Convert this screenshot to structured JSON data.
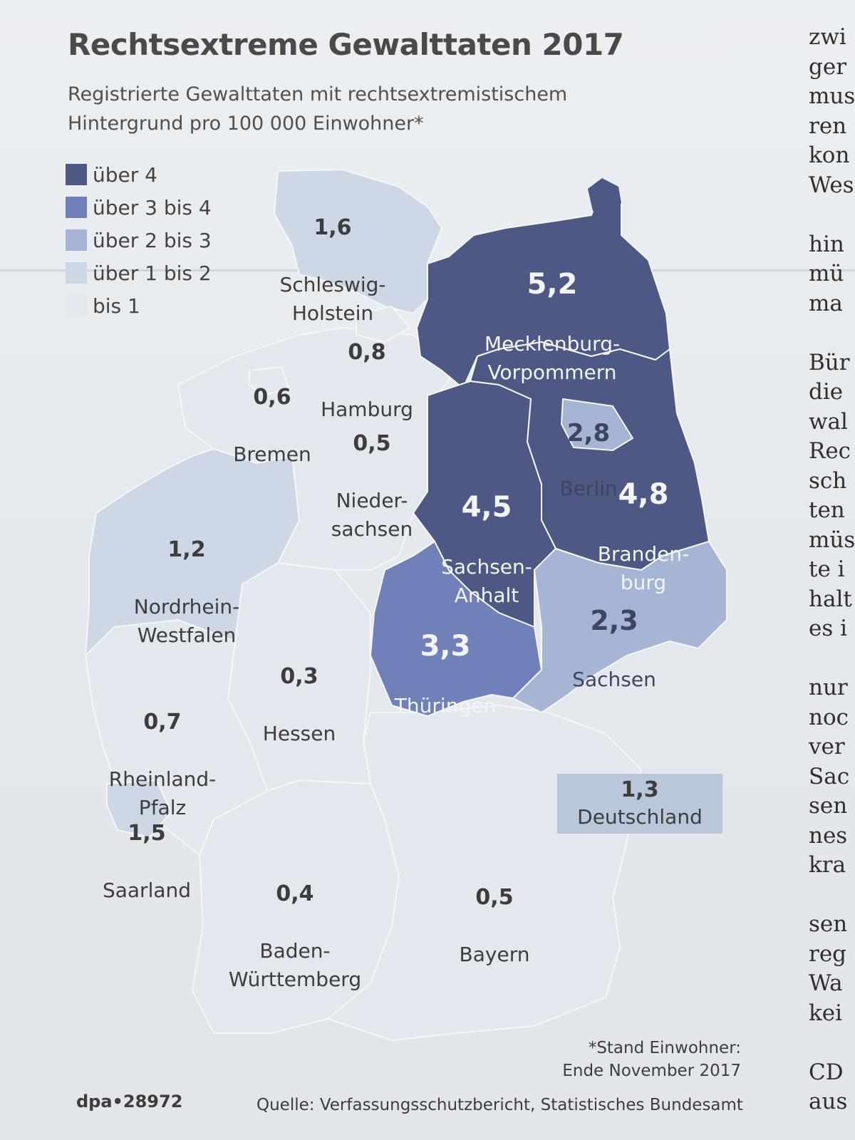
{
  "title": "Rechtsextreme Gewalttaten 2017",
  "subtitle": "Registrierte Gewalttaten mit rechtsextremistischem\nHintergrund pro 100 000 Einwohner*",
  "legend": [
    {
      "label": "über 4",
      "color": "#4e5884"
    },
    {
      "label": "über 3 bis 4",
      "color": "#7080b8"
    },
    {
      "label": "über 2 bis 3",
      "color": "#a6b5d4"
    },
    {
      "label": "über 1 bis 2",
      "color": "#cdd7e6"
    },
    {
      "label": "bis 1",
      "color": "#e3e8ee"
    }
  ],
  "states": {
    "schleswig_holstein": {
      "name": "Schleswig-\nHolstein",
      "value": "1,6",
      "fill": "#cdd7e6"
    },
    "mecklenburg_vorpommern": {
      "name": "Mecklenburg-\nVorpommern",
      "value": "5,2",
      "fill": "#4e5884"
    },
    "hamburg": {
      "name": "Hamburg",
      "value": "0,8",
      "fill": "#e3e8ee"
    },
    "bremen": {
      "name": "Bremen",
      "value": "0,6",
      "fill": "#e3e8ee"
    },
    "niedersachsen": {
      "name": "Nieder-\nsachsen",
      "value": "0,5",
      "fill": "#e3e8ee"
    },
    "berlin": {
      "name": "Berlin",
      "value": "2,8",
      "fill": "#a6b5d4"
    },
    "brandenburg": {
      "name": "Branden-\nburg",
      "value": "4,8",
      "fill": "#4e5884"
    },
    "sachsen_anhalt": {
      "name": "Sachsen-\nAnhalt",
      "value": "4,5",
      "fill": "#4e5884"
    },
    "nordrhein_westfalen": {
      "name": "Nordrhein-\nWestfalen",
      "value": "1,2",
      "fill": "#cdd7e6"
    },
    "sachsen": {
      "name": "Sachsen",
      "value": "2,3",
      "fill": "#a6b5d4"
    },
    "thueringen": {
      "name": "Thüringen",
      "value": "3,3",
      "fill": "#7080b8"
    },
    "hessen": {
      "name": "Hessen",
      "value": "0,3",
      "fill": "#e3e8ee"
    },
    "rheinland_pfalz": {
      "name": "Rheinland-\nPfalz",
      "value": "0,7",
      "fill": "#e3e8ee"
    },
    "saarland": {
      "name": "Saarland",
      "value": "1,5",
      "fill": "#cdd7e6"
    },
    "baden_wuerttemberg": {
      "name": "Baden-\nWürttemberg",
      "value": "0,4",
      "fill": "#e3e8ee"
    },
    "bayern": {
      "name": "Bayern",
      "value": "0,5",
      "fill": "#e3e8ee"
    }
  },
  "total": {
    "name": "Deutschland",
    "value": "1,3"
  },
  "footnote": "*Stand Einwohner:\nEnde November 2017",
  "credit": "dpa•28972",
  "source": "Quelle: Verfassungsschutzbericht, Statistisches Bundesamt",
  "article_fragments": [
    "zwi",
    "ger",
    "mus",
    "ren",
    "kon",
    "Wes",
    "",
    "hin",
    "mü",
    "ma",
    "",
    "Bür",
    "die",
    "wal",
    "Rec",
    "sch",
    "ten",
    "müs",
    "te i",
    "halt",
    "es i",
    "",
    "nur",
    "noc",
    "ver",
    "Sac",
    "sen",
    "nes",
    "kra",
    "",
    "sen",
    "reg",
    "Wa",
    "kei",
    "",
    "CD",
    "aus"
  ]
}
